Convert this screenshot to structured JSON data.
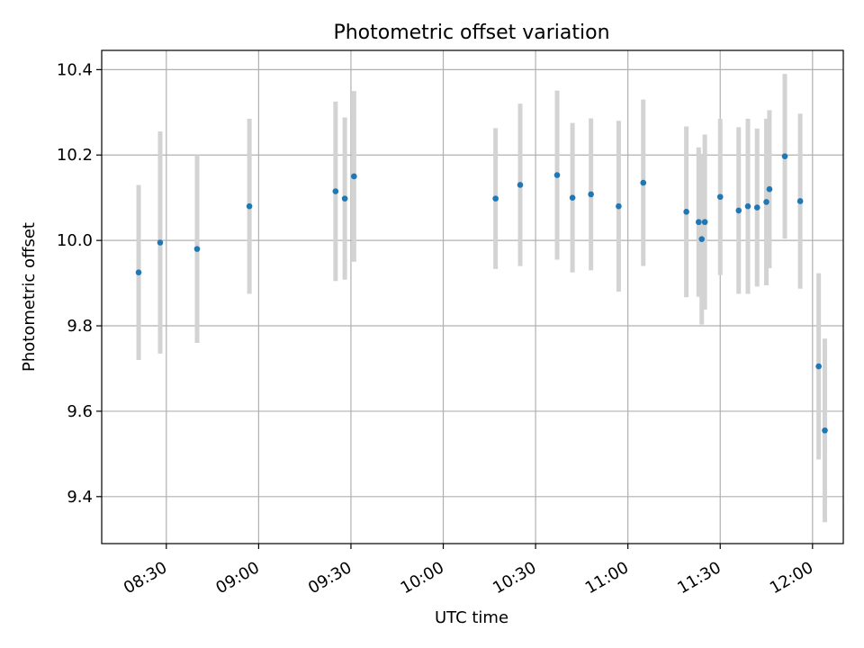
{
  "chart_data": {
    "type": "scatter",
    "title": "Photometric offset variation",
    "xlabel": "UTC time",
    "ylabel": "Photometric offset",
    "x_axis": {
      "kind": "time",
      "range": [
        "08:09",
        "12:10"
      ],
      "ticks": [
        "08:30",
        "09:00",
        "09:30",
        "10:00",
        "10:30",
        "11:00",
        "11:30",
        "12:00"
      ]
    },
    "y_axis": {
      "range": [
        9.29,
        10.445
      ],
      "ticks": [
        9.4,
        9.6,
        9.8,
        10.0,
        10.2,
        10.4
      ]
    },
    "grid": true,
    "colors": {
      "point": "#1f77b4",
      "errorbar": "#d3d3d3"
    },
    "points": [
      {
        "t": "08:21",
        "y": 9.925,
        "err": 0.205
      },
      {
        "t": "08:28",
        "y": 9.995,
        "err": 0.26
      },
      {
        "t": "08:40",
        "y": 9.98,
        "err": 0.22
      },
      {
        "t": "08:57",
        "y": 10.08,
        "err": 0.205
      },
      {
        "t": "09:25",
        "y": 10.115,
        "err": 0.21
      },
      {
        "t": "09:28",
        "y": 10.098,
        "err": 0.19
      },
      {
        "t": "09:31",
        "y": 10.15,
        "err": 0.2
      },
      {
        "t": "10:17",
        "y": 10.098,
        "err": 0.165
      },
      {
        "t": "10:25",
        "y": 10.13,
        "err": 0.19
      },
      {
        "t": "10:37",
        "y": 10.153,
        "err": 0.198
      },
      {
        "t": "10:42",
        "y": 10.1,
        "err": 0.175
      },
      {
        "t": "10:48",
        "y": 10.108,
        "err": 0.178
      },
      {
        "t": "10:57",
        "y": 10.08,
        "err": 0.2
      },
      {
        "t": "11:05",
        "y": 10.135,
        "err": 0.195
      },
      {
        "t": "11:19",
        "y": 10.067,
        "err": 0.2
      },
      {
        "t": "11:23",
        "y": 10.043,
        "err": 0.175
      },
      {
        "t": "11:24",
        "y": 10.003,
        "err": 0.2
      },
      {
        "t": "11:25",
        "y": 10.043,
        "err": 0.205
      },
      {
        "t": "11:30",
        "y": 10.102,
        "err": 0.183
      },
      {
        "t": "11:36",
        "y": 10.07,
        "err": 0.195
      },
      {
        "t": "11:39",
        "y": 10.08,
        "err": 0.205
      },
      {
        "t": "11:42",
        "y": 10.077,
        "err": 0.185
      },
      {
        "t": "11:45",
        "y": 10.09,
        "err": 0.195
      },
      {
        "t": "11:46",
        "y": 10.12,
        "err": 0.185
      },
      {
        "t": "11:51",
        "y": 10.197,
        "err": 0.193
      },
      {
        "t": "11:56",
        "y": 10.092,
        "err": 0.205
      },
      {
        "t": "12:02",
        "y": 9.705,
        "err": 0.218
      },
      {
        "t": "12:04",
        "y": 9.555,
        "err": 0.215
      }
    ]
  }
}
